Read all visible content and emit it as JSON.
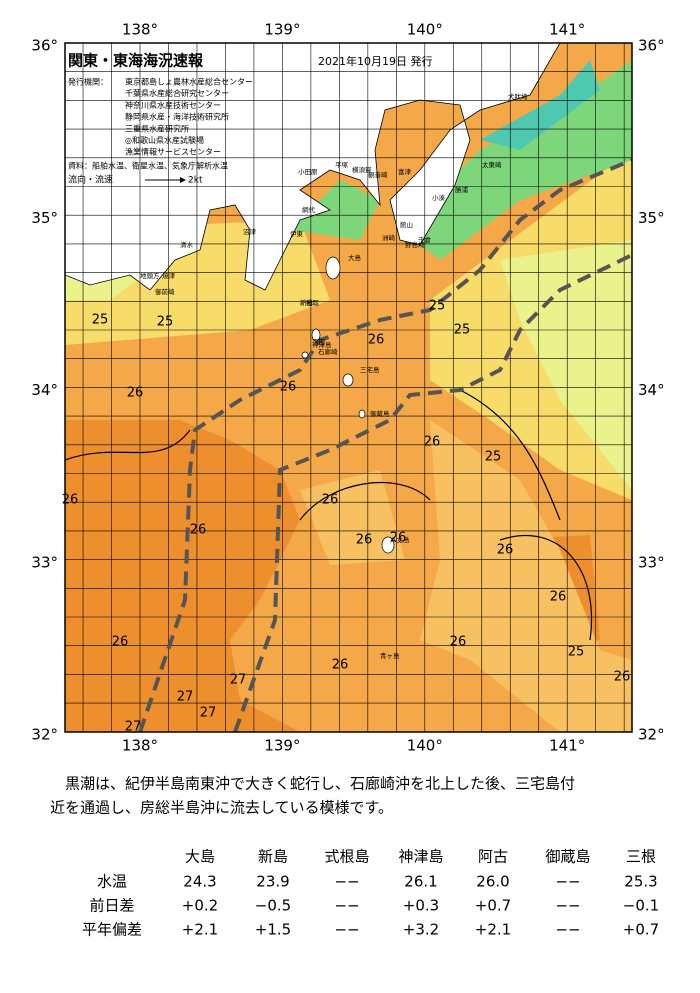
{
  "map": {
    "title": "関東・東海海況速報",
    "issued": "2021年10月19日 発行",
    "agency_label": "発行機関：",
    "agencies": [
      "東京都島しょ農林水産総合センター",
      "千葉県水産総合研究センター",
      "神奈川県水産技術センター",
      "静岡県水産・海洋技術研究所",
      "三重県水産研究所",
      "◎和歌山県水産試験場",
      "漁業情報サービスセンター"
    ],
    "source": "資料：船舶水温、衛星水温、気象庁解析水温",
    "flow_label": "流向・流速",
    "flow_scale": "2kt",
    "longitudes": [
      "138°",
      "139°",
      "140°",
      "141°"
    ],
    "latitudes": [
      "36°",
      "35°",
      "34°",
      "33°",
      "32°"
    ],
    "contour_labels": [
      "25",
      "25",
      "25",
      "25",
      "25",
      "25",
      "26",
      "26",
      "26",
      "26",
      "26",
      "26",
      "26",
      "26",
      "26",
      "26",
      "26",
      "26",
      "26",
      "26",
      "26",
      "27",
      "27",
      "27",
      "27"
    ],
    "places": [
      "犬吠埼",
      "太東崎",
      "勝浦",
      "小湊",
      "千倉",
      "館山",
      "野島埼",
      "洲崎",
      "富津",
      "観音崎",
      "横須賀",
      "平塚",
      "小田原",
      "網代",
      "伊東",
      "稲取",
      "下田",
      "石廊崎",
      "沼津",
      "清水",
      "焼津",
      "御前崎",
      "地頭方",
      "大島",
      "新島",
      "神津島",
      "三宅島",
      "御蔵島",
      "八丈島",
      "青ヶ島"
    ]
  },
  "description": [
    "黒潮は、紀伊半島南東沖で大きく蛇行し、石廊崎沖を北上した後、三宅島付",
    "近を通過し、房総半島沖に流去している模様です。"
  ],
  "table": {
    "header": [
      "大島",
      "新島",
      "式根島",
      "神津島",
      "阿古",
      "御蔵島",
      "三根"
    ],
    "rows": [
      [
        "水温",
        "24.3",
        "23.9",
        "−−",
        "26.1",
        "26.0",
        "−−",
        "25.3"
      ],
      [
        "前日差",
        "+0.2",
        "−0.5",
        "−−",
        "+0.3",
        "+0.7",
        "−−",
        "−0.1"
      ],
      [
        "平年偏差",
        "+2.1",
        "+1.5",
        "−−",
        "+3.2",
        "+2.1",
        "−−",
        "+0.7"
      ]
    ]
  }
}
